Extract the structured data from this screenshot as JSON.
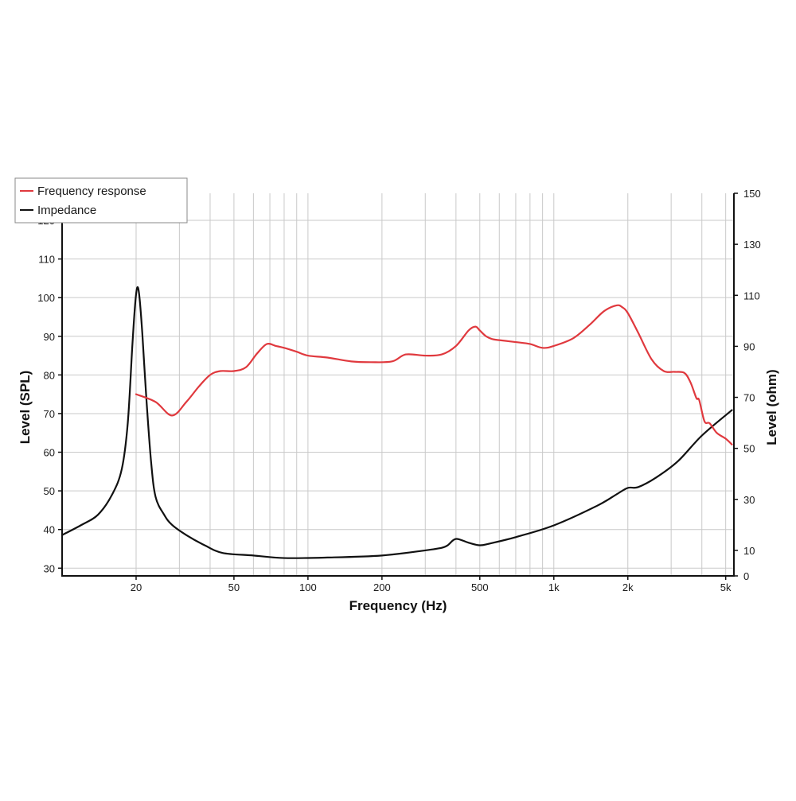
{
  "chart_data": {
    "type": "line",
    "xlabel": "Frequency (Hz)",
    "ylabel_left": "Level (SPL)",
    "ylabel_right": "Level (ohm)",
    "x_scale": "log",
    "xlim": [
      10,
      5400
    ],
    "ylim_left": [
      28,
      127
    ],
    "ylim_right": [
      0,
      150
    ],
    "x_ticks": [
      {
        "value": 20,
        "label": "20"
      },
      {
        "value": 50,
        "label": "50"
      },
      {
        "value": 100,
        "label": "100"
      },
      {
        "value": 200,
        "label": "200"
      },
      {
        "value": 500,
        "label": "500"
      },
      {
        "value": 1000,
        "label": "1k"
      },
      {
        "value": 2000,
        "label": "2k"
      },
      {
        "value": 5000,
        "label": "5k"
      }
    ],
    "y_ticks_left": [
      30,
      40,
      50,
      60,
      70,
      80,
      90,
      100,
      110,
      120
    ],
    "y_ticks_right": [
      0,
      10,
      30,
      50,
      70,
      90,
      110,
      130,
      150
    ],
    "grid": true,
    "legend_position": "top-left",
    "series": [
      {
        "name": "Frequency response",
        "axis": "left",
        "color": "#e0393e",
        "x": [
          20,
          24,
          28,
          32,
          36,
          40,
          44,
          50,
          56,
          62,
          68,
          74,
          80,
          90,
          100,
          120,
          150,
          180,
          220,
          250,
          300,
          350,
          400,
          450,
          480,
          500,
          530,
          560,
          600,
          700,
          800,
          900,
          1000,
          1200,
          1400,
          1600,
          1800,
          1900,
          2000,
          2200,
          2500,
          2800,
          3100,
          3400,
          3600,
          3800,
          3900,
          4100,
          4300,
          4600,
          5000,
          5300
        ],
        "y": [
          75,
          73,
          69.5,
          73,
          77,
          80,
          81,
          81,
          82,
          85.5,
          88,
          87.5,
          87,
          86,
          85,
          84.5,
          83.5,
          83.3,
          83.5,
          85.3,
          85,
          85.3,
          87.5,
          91.5,
          92.5,
          91.5,
          90,
          89.3,
          89,
          88.5,
          88,
          87,
          87.5,
          89.5,
          93,
          96.5,
          98,
          97.5,
          96,
          91,
          84,
          81,
          80.8,
          80.5,
          78,
          74,
          73.5,
          68,
          67.5,
          65,
          63.5,
          62
        ]
      },
      {
        "name": "Impedance",
        "axis": "right",
        "color": "#111111",
        "x": [
          10,
          12,
          14,
          16,
          17.5,
          18.5,
          19.3,
          19.8,
          20.2,
          20.6,
          21.2,
          22,
          23,
          24,
          26,
          28,
          32,
          38,
          45,
          60,
          80,
          120,
          200,
          300,
          350,
          370,
          400,
          450,
          500,
          550,
          700,
          1000,
          1500,
          1800,
          2000,
          2200,
          2600,
          3200,
          4000,
          5300
        ],
        "y": [
          16,
          20,
          24,
          32,
          42,
          60,
          90,
          106,
          113,
          110,
          95,
          70,
          45,
          31,
          24,
          20,
          16,
          12,
          9,
          8,
          7,
          7.2,
          8,
          10,
          11,
          12,
          14.5,
          13,
          12,
          12.7,
          15.2,
          19.8,
          27.5,
          32,
          34.5,
          34.8,
          38.5,
          45,
          55,
          65
        ]
      }
    ]
  }
}
